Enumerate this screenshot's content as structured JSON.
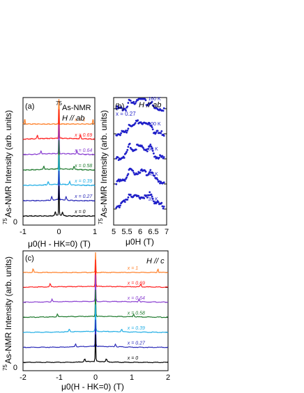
{
  "panels": {
    "a": {
      "tag": "(a)",
      "nucleus_sup": "75",
      "title": "As-NMR",
      "field": "H // ab",
      "xlabel": "μ0(H - HK=0) (T)",
      "xticks": [
        "-1",
        "0",
        "1"
      ],
      "ylabel_sup": "75",
      "ylabel": "As-NMR Intensity (arb. units)",
      "zero": "0"
    },
    "b": {
      "tag": "(b)",
      "field": "H // ab",
      "composition": "x = 0.27",
      "xlabel": "μ0H (T)",
      "xticks": [
        "5",
        "5.5",
        "6",
        "6.5",
        "7"
      ],
      "ylabel_sup": "75",
      "ylabel": "As-NMR Intensity (arb. units)"
    },
    "c": {
      "tag": "(c)",
      "field": "H // c",
      "xlabel": "μ0(H - HK=0) (T)",
      "xticks": [
        "-2",
        "-1",
        "0",
        "1",
        "2"
      ],
      "ylabel_sup": "75",
      "ylabel": "As-NMR Intensity (arb. units)",
      "zero": "0"
    }
  },
  "chart_data": [
    {
      "panel": "a",
      "type": "line",
      "xlim": [
        -1,
        1
      ],
      "series": [
        {
          "name": "x = 1",
          "color": "#ff7f27",
          "offset": 6,
          "sat": 0.95
        },
        {
          "name": "x = 0.69",
          "color": "#ff2020",
          "offset": 5,
          "sat": 0.6
        },
        {
          "name": "x = 0.64",
          "color": "#8a3fd1",
          "offset": 4,
          "sat": 0.5
        },
        {
          "name": "x = 0.58",
          "color": "#1f7a2e",
          "offset": 3,
          "sat": 0.42
        },
        {
          "name": "x = 0.39",
          "color": "#22aee5",
          "offset": 2,
          "sat": 0.3
        },
        {
          "name": "x = 0.27",
          "color": "#2a2ab8",
          "offset": 1,
          "sat": 0.2
        },
        {
          "name": "x = 0",
          "color": "#000000",
          "offset": 0,
          "sat": 0.1
        }
      ]
    },
    {
      "panel": "b",
      "type": "scatter",
      "xlim": [
        5,
        7
      ],
      "series": [
        {
          "name": "160 K",
          "color": "#1e1ec8",
          "offset": 4
        },
        {
          "name": "100 K",
          "color": "#1e1ec8",
          "offset": 3
        },
        {
          "name": "60 K",
          "color": "#1e1ec8",
          "offset": 2
        },
        {
          "name": "40 K",
          "color": "#1e1ec8",
          "offset": 1
        },
        {
          "name": "35 K",
          "color": "#1e1ec8",
          "offset": 0
        }
      ]
    },
    {
      "panel": "c",
      "type": "line",
      "xlim": [
        -2,
        2
      ],
      "series": [
        {
          "name": "x = 1",
          "color": "#ff7f27",
          "offset": 6,
          "sat": 1.72
        },
        {
          "name": "x = 0.69",
          "color": "#ff2020",
          "offset": 5,
          "sat": 1.25
        },
        {
          "name": "x = 0.64",
          "color": "#8a3fd1",
          "offset": 4,
          "sat": 1.2
        },
        {
          "name": "x = 0.58",
          "color": "#1f7a2e",
          "offset": 3,
          "sat": 1.05
        },
        {
          "name": "x = 0.39",
          "color": "#22aee5",
          "offset": 2,
          "sat": 0.72
        },
        {
          "name": "x = 0.27",
          "color": "#2a2ab8",
          "offset": 1,
          "sat": 0.55
        },
        {
          "name": "x = 0",
          "color": "#000000",
          "offset": 0,
          "sat": 0.3
        }
      ]
    }
  ]
}
